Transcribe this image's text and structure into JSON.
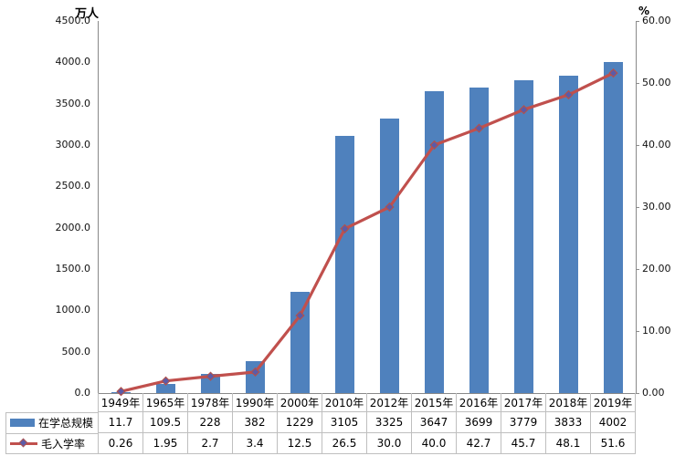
{
  "chart_data": {
    "type": "bar+line",
    "title": "",
    "categories": [
      "1949年",
      "1965年",
      "1978年",
      "1990年",
      "2000年",
      "2010年",
      "2012年",
      "2015年",
      "2016年",
      "2017年",
      "2018年",
      "2019年"
    ],
    "series": [
      {
        "name": "在学总规模",
        "type": "bar",
        "axis": "left",
        "color": "#4F81BD",
        "values": [
          11.7,
          109.5,
          228,
          382,
          1229,
          3105,
          3325,
          3647,
          3699,
          3779,
          3833,
          4002
        ]
      },
      {
        "name": "毛入学率",
        "type": "line",
        "axis": "right",
        "color": "#C0504D",
        "marker": "diamond",
        "values": [
          0.26,
          1.95,
          2.7,
          3.4,
          12.5,
          26.5,
          30.0,
          40.0,
          42.7,
          45.7,
          48.1,
          51.6
        ]
      }
    ],
    "left_axis": {
      "title": "万人",
      "min": 0,
      "max": 4500,
      "step": 500,
      "tick_labels": [
        "0.0",
        "500.0",
        "1000.0",
        "1500.0",
        "2000.0",
        "2500.0",
        "3000.0",
        "3500.0",
        "4000.0",
        "4500.0"
      ]
    },
    "right_axis": {
      "title": "%",
      "min": 0,
      "max": 60,
      "step": 10,
      "tick_labels": [
        "0.00",
        "10.00",
        "20.00",
        "30.00",
        "40.00",
        "50.00",
        "60.00"
      ]
    },
    "grid": false,
    "legend_position": "data-table-left",
    "data_table": {
      "header": [
        "1949年",
        "1965年",
        "1978年",
        "1990年",
        "2000年",
        "2010年",
        "2012年",
        "2015年",
        "2016年",
        "2017年",
        "2018年",
        "2019年"
      ],
      "rows": [
        {
          "label": "在学总规模",
          "values": [
            "11.7",
            "109.5",
            "228",
            "382",
            "1229",
            "3105",
            "3325",
            "3647",
            "3699",
            "3779",
            "3833",
            "4002"
          ]
        },
        {
          "label": "毛入学率",
          "values": [
            "0.26",
            "1.95",
            "2.7",
            "3.4",
            "12.5",
            "26.5",
            "30.0",
            "40.0",
            "42.7",
            "45.7",
            "48.1",
            "51.6"
          ]
        }
      ]
    },
    "colors": {
      "bar": "#4F81BD",
      "line": "#C0504D",
      "marker_fill": "#5B5BA8",
      "marker_border": "#B0524E",
      "table_border": "#bfbfbf",
      "axis_line": "#898989"
    }
  }
}
